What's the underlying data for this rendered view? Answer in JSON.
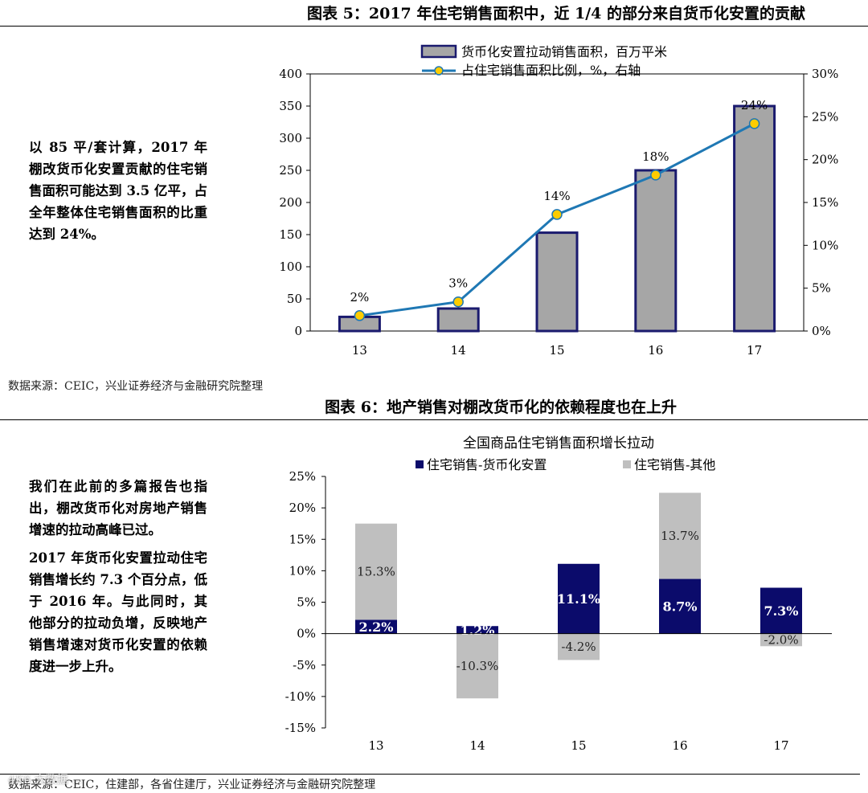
{
  "figure5": {
    "title": "图表 5：2017 年住宅销售面积中，近 1/4 的部分来自货币化安置的贡献",
    "note": "以 85 平/套计算，2017 年棚改货币化安置贡献的住宅销售面积可能达到 3.5 亿平，占全年整体住宅销售面积的比重达到 24%。",
    "source": "数据来源：CEIC，兴业证券经济与金融研究院整理"
  },
  "figure6": {
    "title": "图表 6：地产销售对棚改货币化的依赖程度也在上升",
    "note_p1": "我们在此前的多篇报告也指出，棚改货币化对房地产销售增速的拉动高峰已过。",
    "note_p2": "2017 年货币化安置拉动住宅销售增长约 7.3 个百分点，低于 2016 年。与此同时，其他部分的拉动负增，反映地产销售增速对货币化安置的依赖度进一步上升。",
    "source": "数据来源：CEIC，住建部，各省住建厅，兴业证券经济与金融研究院整理"
  },
  "watermark": "4K6 大数据 ...",
  "chart_data": [
    {
      "type": "bar",
      "title": "",
      "categories": [
        "13",
        "14",
        "15",
        "16",
        "17"
      ],
      "series": [
        {
          "name": "货币化安置拉动销售面积，百万平米",
          "type": "bar",
          "axis": "left",
          "values": [
            22,
            35,
            153,
            250,
            350
          ],
          "color": "#a6a6a6",
          "edge": "#1a1a6e"
        },
        {
          "name": "占住宅销售面积比例，%，右轴",
          "type": "line",
          "axis": "right",
          "values": [
            1.8,
            3.4,
            13.6,
            18.2,
            24.2
          ],
          "labels": [
            "2%",
            "3%",
            "14%",
            "18%",
            "24%"
          ],
          "color": "#1f78b4",
          "marker": "#ffcc00"
        }
      ],
      "yleft": {
        "min": 0,
        "max": 400,
        "ticks": [
          "0",
          "50",
          "100",
          "150",
          "200",
          "250",
          "300",
          "350",
          "400"
        ]
      },
      "yright": {
        "min": 0,
        "max": 30,
        "ticks": [
          "0%",
          "5%",
          "10%",
          "15%",
          "20%",
          "25%",
          "30%"
        ]
      },
      "legend": "top"
    },
    {
      "type": "bar",
      "stacked": true,
      "title": "全国商品住宅销售面积增长拉动",
      "categories": [
        "13",
        "14",
        "15",
        "16",
        "17"
      ],
      "series": [
        {
          "name": "住宅销售-货币化安置",
          "values": [
            2.2,
            1.2,
            11.1,
            8.7,
            7.3
          ],
          "labels": [
            "2.2%",
            "1.2%",
            "11.1%",
            "8.7%",
            "7.3%"
          ],
          "color": "#0b0b6b"
        },
        {
          "name": "住宅销售-其他",
          "values": [
            15.3,
            -10.3,
            -4.2,
            13.7,
            -2.0
          ],
          "labels": [
            "15.3%",
            "-10.3%",
            "-4.2%",
            "13.7%",
            "-2.0%"
          ],
          "color": "#bfbfbf"
        }
      ],
      "ylim": [
        -15,
        25
      ],
      "yticks": [
        "25%",
        "20%",
        "15%",
        "10%",
        "5%",
        "0%",
        "-5%",
        "-10%",
        "-15%"
      ],
      "legend": "top"
    }
  ]
}
